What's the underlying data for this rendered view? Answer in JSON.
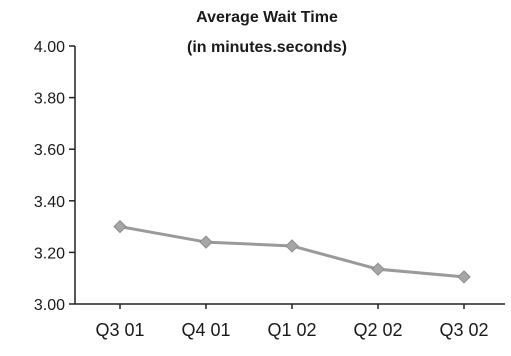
{
  "chart_data": {
    "type": "line",
    "title": "Average Wait Time",
    "subtitle": "(in minutes.seconds)",
    "xlabel": "",
    "ylabel": "",
    "categories": [
      "Q3 01",
      "Q4 01",
      "Q1 02",
      "Q2 02",
      "Q3 02"
    ],
    "series": [
      {
        "values": [
          3.3,
          3.24,
          3.225,
          3.135,
          3.105
        ]
      }
    ],
    "ylim": [
      3.0,
      4.0
    ],
    "yticks": [
      "4.00",
      "3.80",
      "3.60",
      "3.40",
      "3.20",
      "3.00"
    ],
    "grid": false,
    "legend": "none",
    "colors": {
      "series": "#9a9a9a",
      "marker": "#a6a6a6",
      "axis": "#222222"
    }
  }
}
